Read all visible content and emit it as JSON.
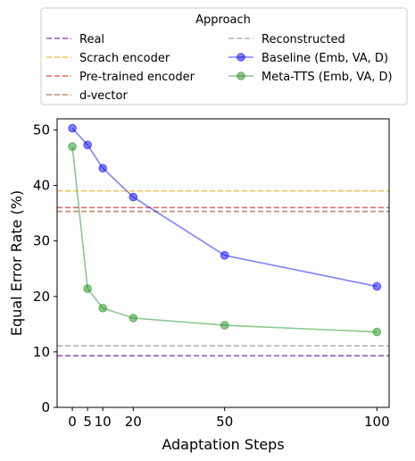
{
  "chart_data": {
    "type": "line",
    "xlabel": "Adaptation Steps",
    "ylabel": "Equal Error Rate (%)",
    "xlim": [
      -5,
      104
    ],
    "ylim": [
      0,
      52
    ],
    "xticks": [
      0,
      5,
      10,
      20,
      50,
      100
    ],
    "yticks": [
      0,
      10,
      20,
      30,
      40,
      50
    ],
    "grid": false,
    "legend": {
      "title": "Approach",
      "placement": "top, outside plot",
      "columns": 2
    },
    "reference_lines": [
      {
        "name": "Real",
        "y": 9.3,
        "color": "#9b59b6",
        "style": "dashed"
      },
      {
        "name": "Scrach encoder",
        "y": 39.0,
        "color": "#f5c155",
        "style": "dashed"
      },
      {
        "name": "Pre-trained encoder",
        "y": 36.0,
        "color": "#e8625e",
        "style": "dashed"
      },
      {
        "name": "d-vector",
        "y": 35.3,
        "color": "#c98a76",
        "style": "dashed"
      },
      {
        "name": "Reconstructed",
        "y": 11.1,
        "color": "#b0b0b0",
        "style": "dashed"
      }
    ],
    "series": [
      {
        "name": "Baseline (Emb, VA, D)",
        "color": "#0000ff",
        "x": [
          0,
          5,
          10,
          20,
          50,
          100
        ],
        "values": [
          50.3,
          47.3,
          43.1,
          37.9,
          27.4,
          21.8
        ]
      },
      {
        "name": "Meta-TTS (Emb, VA, D)",
        "color": "#1a8f1a",
        "x": [
          0,
          5,
          10,
          20,
          50,
          100
        ],
        "values": [
          47.0,
          21.4,
          17.9,
          16.1,
          14.8,
          13.6
        ]
      }
    ]
  }
}
